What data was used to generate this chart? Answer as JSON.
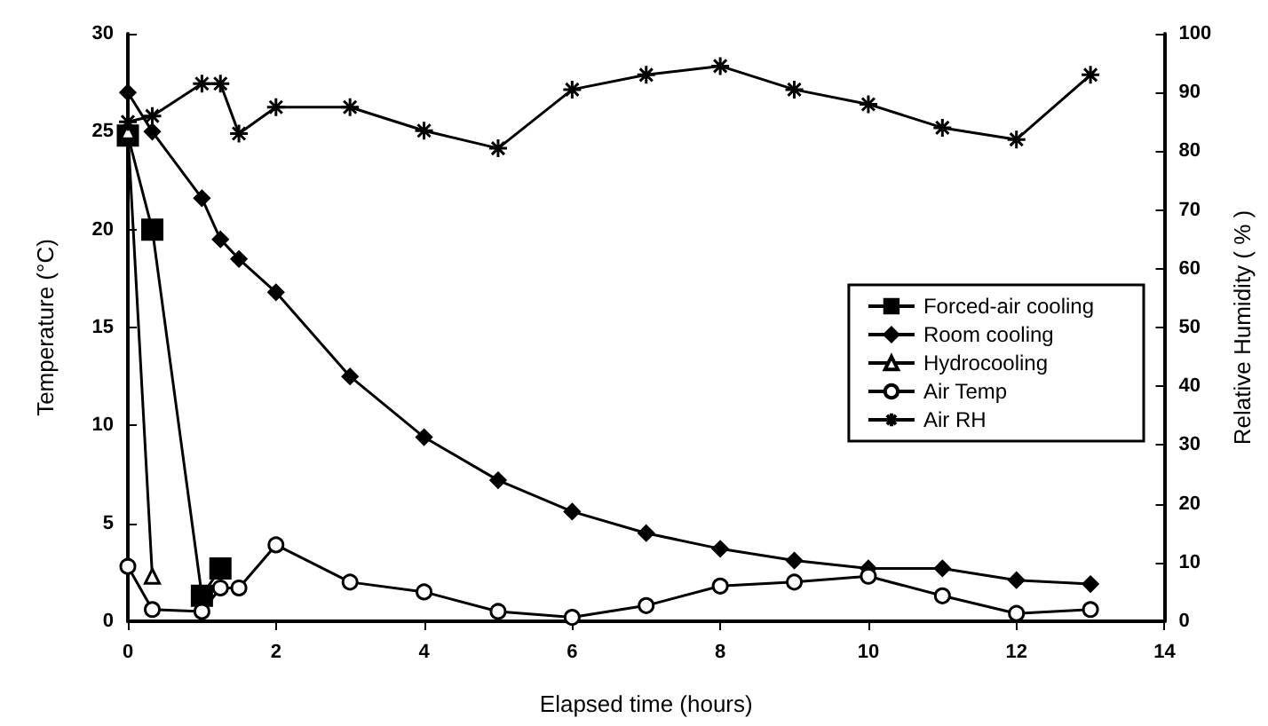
{
  "chart_data": {
    "type": "line",
    "xlabel": "Elapsed time (hours)",
    "ylabel": "Temperature (°C)",
    "y2label": "Relative Humidity ( % )",
    "xlim": [
      0,
      14
    ],
    "xticks": [
      0,
      2,
      4,
      6,
      8,
      10,
      12,
      14
    ],
    "ylim": [
      0,
      30
    ],
    "yticks": [
      0,
      5,
      10,
      15,
      20,
      25,
      30
    ],
    "y2lim": [
      0,
      100
    ],
    "y2ticks": [
      0,
      10,
      20,
      30,
      40,
      50,
      60,
      70,
      80,
      90,
      100
    ],
    "grid": false,
    "legend": "right",
    "series": [
      {
        "name": "Forced-air cooling",
        "color": "#000000",
        "marker": "square",
        "x": [
          0,
          0.33,
          1,
          1.25
        ],
        "values": [
          24.8,
          20,
          1.3,
          2.7
        ]
      },
      {
        "name": "Room cooling",
        "color": "#000000",
        "marker": "diamond",
        "x": [
          0,
          0.33,
          1,
          1.25,
          1.5,
          2,
          3,
          4,
          5,
          6,
          7,
          8,
          9,
          10,
          11,
          12,
          13
        ],
        "values": [
          27,
          25,
          21.6,
          19.5,
          18.5,
          16.8,
          12.5,
          9.4,
          7.2,
          5.6,
          4.5,
          3.7,
          3.1,
          2.7,
          2.7,
          2.1,
          1.9
        ]
      },
      {
        "name": "Hydrocooling",
        "color": "#000000",
        "marker": "triangle",
        "x": [
          0,
          0.33
        ],
        "values": [
          25,
          2.3
        ]
      },
      {
        "name": "Air Temp",
        "color": "#000000",
        "marker": "circle",
        "x": [
          0,
          0.33,
          1,
          1.25,
          1.5,
          2,
          3,
          4,
          5,
          6,
          7,
          8,
          9,
          10,
          11,
          12,
          13
        ],
        "values": [
          2.8,
          0.6,
          0.5,
          1.7,
          1.7,
          3.9,
          2,
          1.5,
          0.5,
          0.2,
          0.8,
          1.8,
          2,
          2.3,
          1.3,
          0.4,
          0.6
        ]
      },
      {
        "name": "Air RH",
        "color": "#000000",
        "marker": "cross",
        "axis": "y2",
        "x": [
          0,
          0.33,
          1,
          1.25,
          1.5,
          2,
          3,
          4,
          5,
          6,
          7,
          8,
          9,
          10,
          11,
          12,
          13
        ],
        "values": [
          85,
          86,
          91.5,
          91.5,
          83,
          87.5,
          87.5,
          83.5,
          80.5,
          90.5,
          93,
          94.5,
          90.5,
          88,
          84,
          82,
          93
        ]
      }
    ]
  }
}
